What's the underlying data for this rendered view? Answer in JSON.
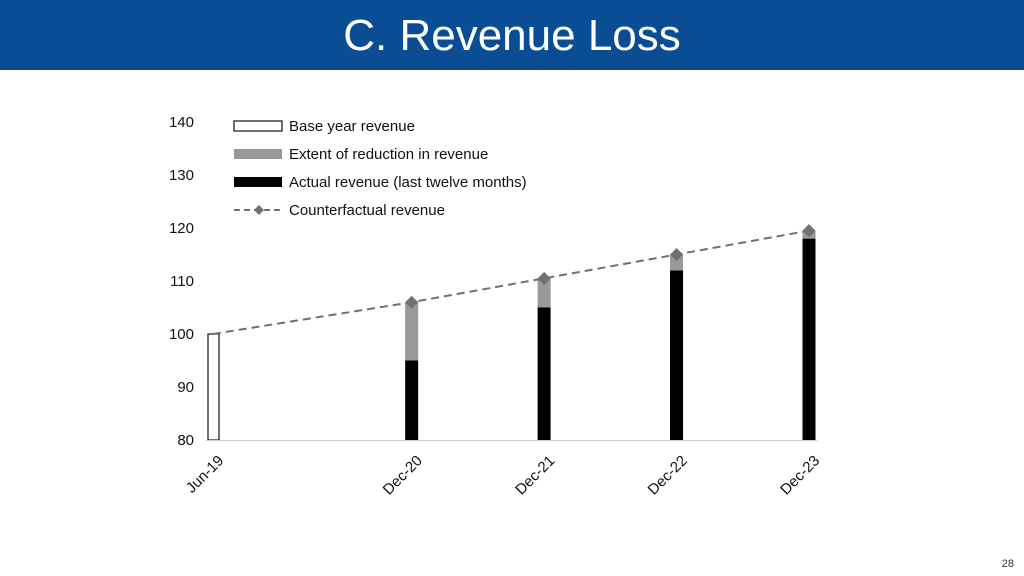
{
  "slide": {
    "title": "C. Revenue Loss",
    "page_number": "28"
  },
  "chart_data": {
    "type": "bar",
    "categories": [
      "Jun-19",
      "Dec-20",
      "Dec-21",
      "Dec-22",
      "Dec-23"
    ],
    "x_dates": [
      "2019-06",
      "2020-12",
      "2021-12",
      "2022-12",
      "2023-12"
    ],
    "ylim": [
      80,
      140
    ],
    "yticks": [
      80,
      90,
      100,
      110,
      120,
      130,
      140
    ],
    "grid": false,
    "legend_position": "top-left",
    "series": [
      {
        "name": "Base year revenue",
        "style": "outline-bar",
        "color": "#ffffff",
        "stroke": "#111111",
        "values": [
          100,
          null,
          null,
          null,
          null
        ]
      },
      {
        "name": "Extent of reduction in revenue",
        "style": "bar",
        "color": "#999999",
        "values": [
          null,
          11,
          5.5,
          3,
          1.5
        ]
      },
      {
        "name": "Actual revenue (last twelve months)",
        "style": "bar",
        "color": "#000000",
        "values": [
          null,
          95,
          105,
          112,
          118
        ]
      },
      {
        "name": "Counterfactual revenue",
        "style": "dashed-line-diamond",
        "color": "#707070",
        "values": [
          100,
          106,
          110.5,
          115,
          119.5
        ]
      }
    ]
  }
}
